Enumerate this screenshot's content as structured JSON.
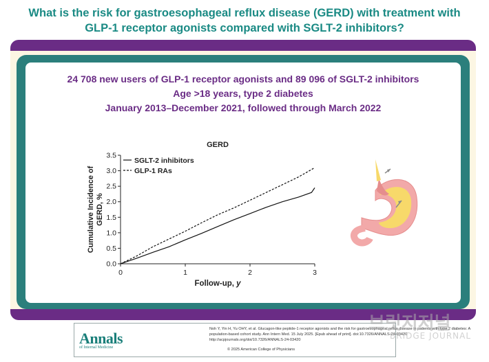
{
  "header": {
    "title_line1": "What is the risk for gastroesophageal reflux disease (GERD) with treatment with",
    "title_line2": "GLP-1 receptor agonists compared with SGLT-2 inhibitors?"
  },
  "study": {
    "line1": "24 708 new users of GLP-1 receptor agonists and 89 096 of SGLT-2 inhibitors",
    "line2": "Age >18 years, type 2 diabetes",
    "line3": "January 2013–December 2021, followed through March 2022"
  },
  "chart_data": {
    "type": "line",
    "title": "GERD",
    "xlabel": "Follow-up, y",
    "ylabel": "Cumulative Incidence of GERD, %",
    "xlim": [
      0,
      3
    ],
    "ylim": [
      0,
      3.5
    ],
    "x_ticks": [
      "0",
      "1",
      "2",
      "3"
    ],
    "y_ticks": [
      "0.0",
      "0.5",
      "1.0",
      "1.5",
      "2.0",
      "2.5",
      "3.0",
      "3.5"
    ],
    "legend_position": "top-left",
    "series": [
      {
        "name": "SGLT-2 inhibitors",
        "style": "solid",
        "x": [
          0,
          0.25,
          0.5,
          0.75,
          1.0,
          1.25,
          1.5,
          1.75,
          2.0,
          2.25,
          2.5,
          2.75,
          2.95,
          3.0
        ],
        "y": [
          0,
          0.18,
          0.37,
          0.55,
          0.77,
          0.98,
          1.2,
          1.42,
          1.62,
          1.82,
          2.0,
          2.15,
          2.3,
          2.45
        ]
      },
      {
        "name": "GLP-1 RAs",
        "style": "dashed",
        "x": [
          0,
          0.25,
          0.5,
          0.75,
          1.0,
          1.25,
          1.5,
          1.75,
          2.0,
          2.25,
          2.5,
          2.75,
          3.0
        ],
        "y": [
          0,
          0.25,
          0.55,
          0.8,
          1.05,
          1.32,
          1.58,
          1.8,
          2.05,
          2.3,
          2.55,
          2.8,
          3.1
        ]
      }
    ]
  },
  "footer": {
    "logo_main": "Annals",
    "logo_sub": "of Internal Medicine",
    "citation_line1": "Noh Y, Yin H, Yu OHY, et al. Glucagon-like peptide-1 receptor agonists and the risk for gastroesophageal reflux disease in patients with type 2 diabetes: A",
    "citation_line2": "population-based cohort study. Ann Intern Med. 15 July 2025. [Epub ahead of print]. doi:10.7326/ANNALS-24-03420",
    "citation_line3": "http://acpjournals.org/doi/10.7326/ANNALS-24-03420",
    "citation_line4": "© 2025 American College of Physicians"
  },
  "watermark": {
    "text": "브릿지저널",
    "sub": "BRIDGE JOURNAL"
  },
  "colors": {
    "teal": "#1a8a84",
    "purple": "#6a2c85",
    "cream": "#fcf6e3"
  },
  "icons": [
    "stomach-illustration-icon",
    "logo-annals-icon",
    "watermark-logo-icon"
  ]
}
